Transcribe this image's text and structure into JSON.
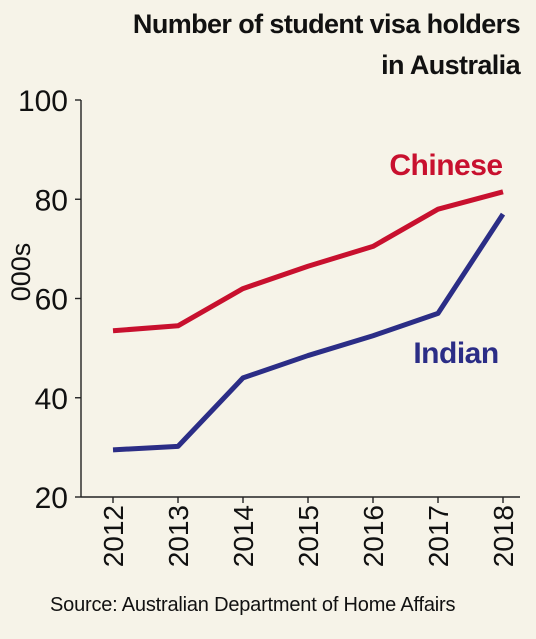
{
  "chart_data": {
    "type": "line",
    "title_line1": "Number of student visa holders",
    "title_line2": "in Australia",
    "ylabel": "000s",
    "xlabel": "",
    "ylim": [
      20,
      100
    ],
    "yticks": [
      "20",
      "40",
      "60",
      "80",
      "100"
    ],
    "categories": [
      "2012",
      "2013",
      "2014",
      "2015",
      "2016",
      "2017",
      "2018"
    ],
    "grid": false,
    "series": [
      {
        "name": "Chinese",
        "color": "#c8102e",
        "values": [
          53.5,
          54.5,
          62,
          66.5,
          70.5,
          78,
          81.5
        ]
      },
      {
        "name": "Indian",
        "color": "#2b2d86",
        "values": [
          29.5,
          30.2,
          44,
          48.5,
          52.5,
          57,
          77
        ]
      }
    ],
    "source": "Source: Australian Department of Home Affairs"
  }
}
